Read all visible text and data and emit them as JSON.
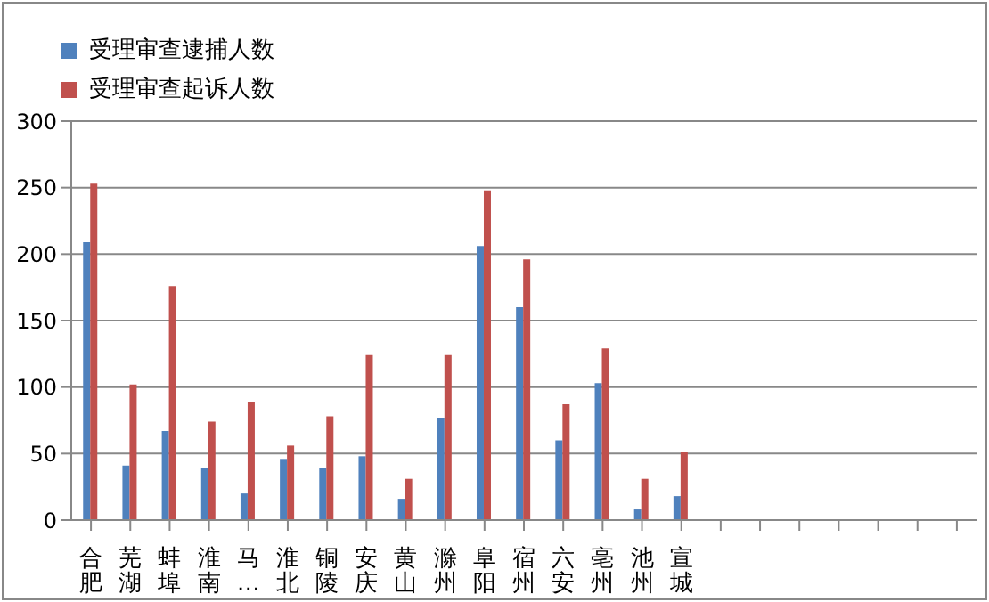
{
  "chart_data": {
    "type": "bar",
    "categories": [
      "合肥",
      "芜湖",
      "蚌埠",
      "淮南",
      "马…",
      "淮北",
      "铜陵",
      "安庆",
      "黄山",
      "滁州",
      "阜阳",
      "宿州",
      "六安",
      "亳州",
      "池州",
      "宣城",
      null,
      null,
      null,
      null,
      null,
      null,
      null
    ],
    "series": [
      {
        "name": "受理审查逮捕人数",
        "color": "#4f81bd",
        "values": [
          209,
          41,
          67,
          39,
          20,
          46,
          39,
          48,
          16,
          77,
          206,
          160,
          60,
          103,
          8,
          18,
          null,
          null,
          null,
          null,
          null,
          null,
          null
        ]
      },
      {
        "name": "受理审查起诉人数",
        "color": "#c0504d",
        "values": [
          253,
          102,
          176,
          74,
          89,
          56,
          78,
          124,
          31,
          124,
          248,
          196,
          87,
          129,
          31,
          51,
          null,
          null,
          null,
          null,
          null,
          null,
          null
        ]
      }
    ],
    "ylim": [
      0,
      300
    ],
    "yticks": [
      0,
      50,
      100,
      150,
      200,
      250,
      300
    ],
    "grid": "y",
    "legend": "top left"
  }
}
